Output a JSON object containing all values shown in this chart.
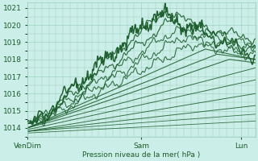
{
  "xlabel": "Pression niveau de la mer( hPa )",
  "bg_color": "#cceee8",
  "grid_color": "#99ccbb",
  "line_color": "#1a5c2a",
  "ylim": [
    1013.5,
    1021.3
  ],
  "xlim": [
    0,
    96
  ],
  "yticks": [
    1014,
    1015,
    1016,
    1017,
    1018,
    1019,
    1020,
    1021
  ],
  "xtick_pos": [
    0,
    48,
    90
  ],
  "xtick_labels": [
    "VenDim",
    "Sam",
    "Lun"
  ],
  "figsize": [
    3.2,
    2.0
  ],
  "dpi": 100
}
